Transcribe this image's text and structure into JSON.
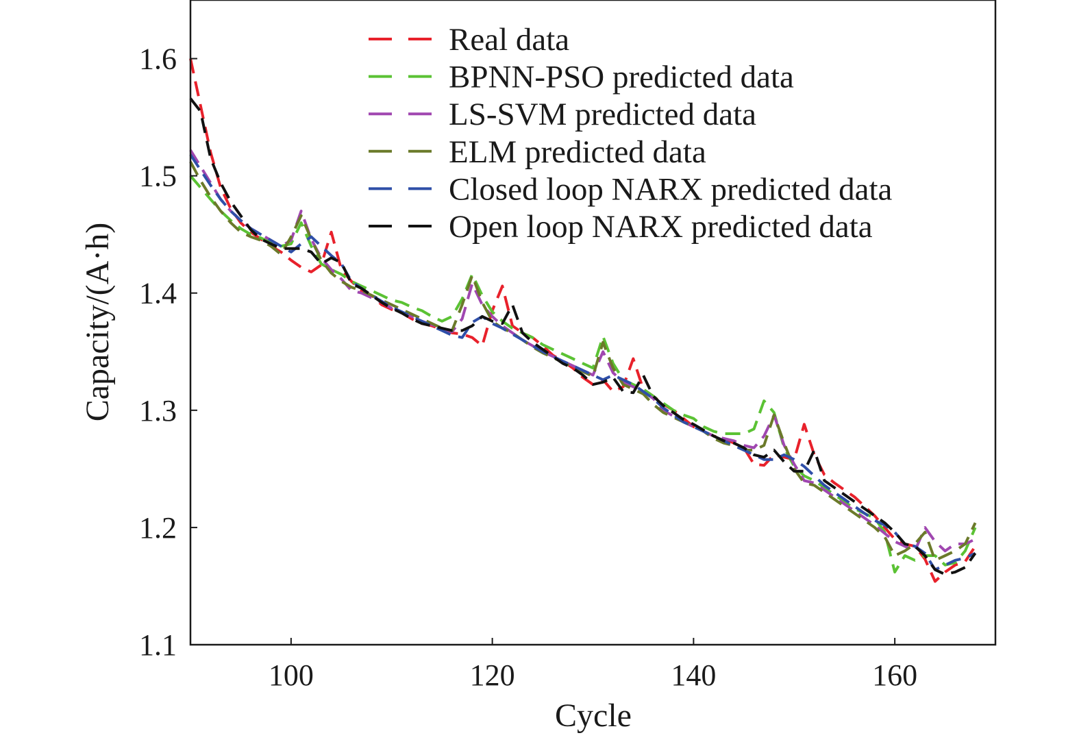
{
  "chart_data": {
    "type": "line",
    "xlabel": "Cycle",
    "ylabel": "Capacity/(A·h)",
    "xlim": [
      90,
      170
    ],
    "ylim": [
      1.1,
      1.65
    ],
    "xticks": [
      100,
      120,
      140,
      160
    ],
    "xtick_labels": [
      "100",
      "120",
      "140",
      "160"
    ],
    "yticks": [
      1.1,
      1.2,
      1.3,
      1.4,
      1.5,
      1.6
    ],
    "ytick_labels": [
      "1.1",
      "1.2",
      "1.3",
      "1.4",
      "1.5",
      "1.6"
    ],
    "grid": false,
    "legend_position": "top-right",
    "series": [
      {
        "name": "Real data",
        "color": "#e8212b",
        "x": [
          90,
          91,
          92,
          93,
          94,
          95,
          96,
          97,
          98,
          99,
          100,
          101,
          102,
          103,
          104,
          105,
          106,
          107,
          108,
          109,
          110,
          111,
          112,
          113,
          114,
          115,
          116,
          117,
          118,
          119,
          120,
          121,
          122,
          123,
          124,
          125,
          126,
          127,
          128,
          129,
          130,
          131,
          132,
          133,
          134,
          135,
          136,
          137,
          138,
          139,
          140,
          141,
          142,
          143,
          144,
          145,
          146,
          147,
          148,
          149,
          150,
          151,
          152,
          153,
          154,
          155,
          156,
          157,
          158,
          159,
          160,
          161,
          162,
          163,
          164,
          165,
          166,
          167,
          168
        ],
        "y": [
          1.6,
          1.56,
          1.52,
          1.49,
          1.472,
          1.46,
          1.452,
          1.446,
          1.44,
          1.435,
          1.428,
          1.422,
          1.418,
          1.424,
          1.452,
          1.42,
          1.41,
          1.402,
          1.398,
          1.39,
          1.386,
          1.383,
          1.378,
          1.374,
          1.372,
          1.369,
          1.366,
          1.365,
          1.362,
          1.355,
          1.385,
          1.406,
          1.372,
          1.366,
          1.362,
          1.355,
          1.347,
          1.342,
          1.336,
          1.328,
          1.322,
          1.326,
          1.316,
          1.32,
          1.344,
          1.318,
          1.312,
          1.305,
          1.3,
          1.293,
          1.286,
          1.282,
          1.278,
          1.276,
          1.272,
          1.268,
          1.254,
          1.253,
          1.262,
          1.26,
          1.258,
          1.288,
          1.262,
          1.245,
          1.238,
          1.232,
          1.226,
          1.218,
          1.21,
          1.2,
          1.19,
          1.186,
          1.184,
          1.173,
          1.154,
          1.162,
          1.168,
          1.171,
          1.184
        ]
      },
      {
        "name": "BPNN-PSO predicted data",
        "color": "#5bc234",
        "x": [
          90,
          91,
          92,
          93,
          94,
          95,
          96,
          97,
          98,
          99,
          100,
          101,
          102,
          103,
          104,
          105,
          106,
          107,
          108,
          109,
          110,
          111,
          112,
          113,
          114,
          115,
          116,
          117,
          118,
          119,
          120,
          121,
          122,
          123,
          124,
          125,
          126,
          127,
          128,
          129,
          130,
          131,
          132,
          133,
          134,
          135,
          136,
          137,
          138,
          139,
          140,
          141,
          142,
          143,
          144,
          145,
          146,
          147,
          148,
          149,
          150,
          151,
          152,
          153,
          154,
          155,
          156,
          157,
          158,
          159,
          160,
          161,
          162,
          163,
          164,
          165,
          166,
          167,
          168
        ],
        "y": [
          1.5,
          1.49,
          1.48,
          1.47,
          1.462,
          1.455,
          1.45,
          1.447,
          1.443,
          1.44,
          1.442,
          1.46,
          1.44,
          1.425,
          1.42,
          1.416,
          1.41,
          1.406,
          1.402,
          1.398,
          1.394,
          1.392,
          1.388,
          1.385,
          1.38,
          1.376,
          1.38,
          1.395,
          1.416,
          1.398,
          1.384,
          1.376,
          1.37,
          1.366,
          1.362,
          1.356,
          1.352,
          1.348,
          1.344,
          1.34,
          1.336,
          1.363,
          1.34,
          1.326,
          1.322,
          1.318,
          1.312,
          1.306,
          1.3,
          1.296,
          1.293,
          1.286,
          1.282,
          1.28,
          1.28,
          1.28,
          1.284,
          1.308,
          1.298,
          1.268,
          1.252,
          1.244,
          1.24,
          1.234,
          1.228,
          1.222,
          1.216,
          1.212,
          1.208,
          1.196,
          1.162,
          1.176,
          1.172,
          1.176,
          1.176,
          1.168,
          1.17,
          1.18,
          1.2
        ]
      },
      {
        "name": "LS-SVM predicted data",
        "color": "#a047b0",
        "x": [
          90,
          91,
          92,
          93,
          94,
          95,
          96,
          97,
          98,
          99,
          100,
          101,
          102,
          103,
          104,
          105,
          106,
          107,
          108,
          109,
          110,
          111,
          112,
          113,
          114,
          115,
          116,
          117,
          118,
          119,
          120,
          121,
          122,
          123,
          124,
          125,
          126,
          127,
          128,
          129,
          130,
          131,
          132,
          133,
          134,
          135,
          136,
          137,
          138,
          139,
          140,
          141,
          142,
          143,
          144,
          145,
          146,
          147,
          148,
          149,
          150,
          151,
          152,
          153,
          154,
          155,
          156,
          157,
          158,
          159,
          160,
          161,
          162,
          163,
          164,
          165,
          166,
          167,
          168
        ],
        "y": [
          1.522,
          1.508,
          1.494,
          1.48,
          1.47,
          1.462,
          1.455,
          1.45,
          1.445,
          1.44,
          1.445,
          1.47,
          1.446,
          1.43,
          1.42,
          1.412,
          1.402,
          1.4,
          1.396,
          1.392,
          1.387,
          1.383,
          1.38,
          1.376,
          1.373,
          1.37,
          1.367,
          1.378,
          1.408,
          1.39,
          1.38,
          1.372,
          1.366,
          1.36,
          1.355,
          1.35,
          1.346,
          1.342,
          1.338,
          1.334,
          1.33,
          1.35,
          1.332,
          1.324,
          1.32,
          1.316,
          1.31,
          1.3,
          1.295,
          1.29,
          1.286,
          1.282,
          1.278,
          1.276,
          1.274,
          1.27,
          1.268,
          1.278,
          1.296,
          1.27,
          1.254,
          1.24,
          1.238,
          1.232,
          1.226,
          1.22,
          1.214,
          1.208,
          1.202,
          1.195,
          1.188,
          1.184,
          1.18,
          1.2,
          1.188,
          1.18,
          1.186,
          1.186,
          1.19
        ]
      },
      {
        "name": "ELM predicted data",
        "color": "#6b7a2a",
        "x": [
          90,
          91,
          92,
          93,
          94,
          95,
          96,
          97,
          98,
          99,
          100,
          101,
          102,
          103,
          104,
          105,
          106,
          107,
          108,
          109,
          110,
          111,
          112,
          113,
          114,
          115,
          116,
          117,
          118,
          119,
          120,
          121,
          122,
          123,
          124,
          125,
          126,
          127,
          128,
          129,
          130,
          131,
          132,
          133,
          134,
          135,
          136,
          137,
          138,
          139,
          140,
          141,
          142,
          143,
          144,
          145,
          146,
          147,
          148,
          149,
          150,
          151,
          152,
          153,
          154,
          155,
          156,
          157,
          158,
          159,
          160,
          161,
          162,
          163,
          164,
          165,
          166,
          167,
          168
        ],
        "y": [
          1.512,
          1.496,
          1.482,
          1.47,
          1.46,
          1.452,
          1.448,
          1.445,
          1.44,
          1.433,
          1.448,
          1.466,
          1.446,
          1.428,
          1.417,
          1.41,
          1.405,
          1.402,
          1.398,
          1.394,
          1.39,
          1.386,
          1.382,
          1.378,
          1.374,
          1.37,
          1.368,
          1.39,
          1.415,
          1.392,
          1.376,
          1.37,
          1.366,
          1.36,
          1.354,
          1.349,
          1.345,
          1.341,
          1.337,
          1.333,
          1.329,
          1.358,
          1.336,
          1.322,
          1.318,
          1.314,
          1.305,
          1.298,
          1.294,
          1.29,
          1.286,
          1.282,
          1.276,
          1.272,
          1.27,
          1.266,
          1.266,
          1.27,
          1.296,
          1.272,
          1.25,
          1.238,
          1.236,
          1.23,
          1.224,
          1.218,
          1.212,
          1.206,
          1.2,
          1.192,
          1.176,
          1.18,
          1.186,
          1.196,
          1.172,
          1.176,
          1.18,
          1.186,
          1.204
        ]
      },
      {
        "name": "Closed loop NARX predicted data",
        "color": "#2f4fa8",
        "x": [
          90,
          91,
          92,
          93,
          94,
          95,
          96,
          97,
          98,
          99,
          100,
          101,
          102,
          103,
          104,
          105,
          106,
          107,
          108,
          109,
          110,
          111,
          112,
          113,
          114,
          115,
          116,
          117,
          118,
          119,
          120,
          121,
          122,
          123,
          124,
          125,
          126,
          127,
          128,
          129,
          130,
          131,
          132,
          133,
          134,
          135,
          136,
          137,
          138,
          139,
          140,
          141,
          142,
          143,
          144,
          145,
          146,
          147,
          148,
          149,
          150,
          151,
          152,
          153,
          154,
          155,
          156,
          157,
          158,
          159,
          160,
          161,
          162,
          163,
          164,
          165,
          166,
          167,
          168
        ],
        "y": [
          1.518,
          1.505,
          1.492,
          1.48,
          1.47,
          1.462,
          1.455,
          1.45,
          1.445,
          1.44,
          1.435,
          1.442,
          1.448,
          1.44,
          1.432,
          1.425,
          1.41,
          1.404,
          1.398,
          1.393,
          1.388,
          1.384,
          1.38,
          1.376,
          1.372,
          1.368,
          1.364,
          1.362,
          1.375,
          1.38,
          1.374,
          1.37,
          1.365,
          1.36,
          1.355,
          1.35,
          1.346,
          1.342,
          1.338,
          1.334,
          1.33,
          1.326,
          1.33,
          1.326,
          1.322,
          1.316,
          1.31,
          1.302,
          1.296,
          1.29,
          1.286,
          1.282,
          1.278,
          1.274,
          1.27,
          1.266,
          1.262,
          1.258,
          1.258,
          1.262,
          1.258,
          1.252,
          1.244,
          1.236,
          1.23,
          1.224,
          1.218,
          1.212,
          1.206,
          1.202,
          1.196,
          1.186,
          1.184,
          1.178,
          1.164,
          1.168,
          1.172,
          1.174,
          1.178
        ]
      },
      {
        "name": "Open loop NARX predicted data",
        "color": "#111111",
        "x": [
          90,
          91,
          92,
          93,
          94,
          95,
          96,
          97,
          98,
          99,
          100,
          101,
          102,
          103,
          104,
          105,
          106,
          107,
          108,
          109,
          110,
          111,
          112,
          113,
          114,
          115,
          116,
          117,
          118,
          119,
          120,
          121,
          122,
          123,
          124,
          125,
          126,
          127,
          128,
          129,
          130,
          131,
          132,
          133,
          134,
          135,
          136,
          137,
          138,
          139,
          140,
          141,
          142,
          143,
          144,
          145,
          146,
          147,
          148,
          149,
          150,
          151,
          152,
          153,
          154,
          155,
          156,
          157,
          158,
          159,
          160,
          161,
          162,
          163,
          164,
          165,
          166,
          167,
          168
        ],
        "y": [
          1.566,
          1.555,
          1.515,
          1.494,
          1.478,
          1.466,
          1.454,
          1.446,
          1.442,
          1.438,
          1.438,
          1.438,
          1.435,
          1.425,
          1.43,
          1.426,
          1.408,
          1.404,
          1.398,
          1.392,
          1.387,
          1.383,
          1.378,
          1.374,
          1.372,
          1.37,
          1.368,
          1.368,
          1.372,
          1.38,
          1.376,
          1.374,
          1.39,
          1.366,
          1.358,
          1.352,
          1.346,
          1.34,
          1.336,
          1.33,
          1.322,
          1.324,
          1.328,
          1.316,
          1.315,
          1.33,
          1.312,
          1.304,
          1.298,
          1.292,
          1.288,
          1.283,
          1.278,
          1.274,
          1.272,
          1.268,
          1.262,
          1.26,
          1.266,
          1.256,
          1.248,
          1.248,
          1.266,
          1.24,
          1.234,
          1.228,
          1.222,
          1.216,
          1.21,
          1.204,
          1.196,
          1.186,
          1.184,
          1.176,
          1.164,
          1.16,
          1.162,
          1.166,
          1.178
        ]
      }
    ]
  }
}
